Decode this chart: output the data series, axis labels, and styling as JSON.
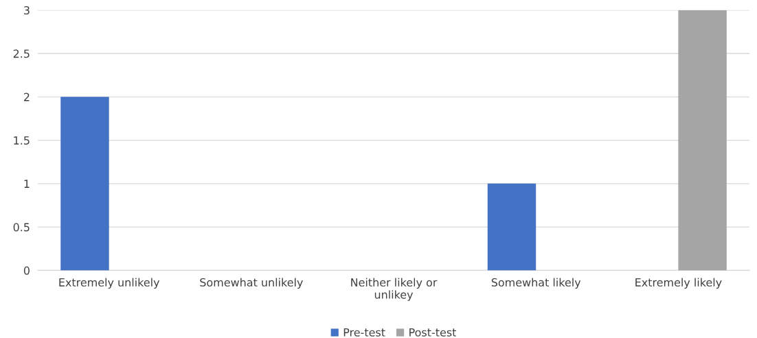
{
  "chart_data": {
    "type": "bar",
    "categories": [
      "Extremely unlikely",
      "Somewhat unlikely",
      "Neither likely or\nunlikey",
      "Somewhat likely",
      "Extremely likely"
    ],
    "series": [
      {
        "name": "Pre-test",
        "color": "#4472c4",
        "values": [
          2,
          0,
          0,
          1,
          0
        ]
      },
      {
        "name": "Post-test",
        "color": "#a5a5a5",
        "values": [
          0,
          0,
          0,
          0,
          3
        ]
      }
    ],
    "ylim": [
      0,
      3
    ],
    "yticks": [
      0,
      0.5,
      1,
      1.5,
      2,
      2.5,
      3
    ],
    "grid": "y",
    "legend": "bottom"
  }
}
